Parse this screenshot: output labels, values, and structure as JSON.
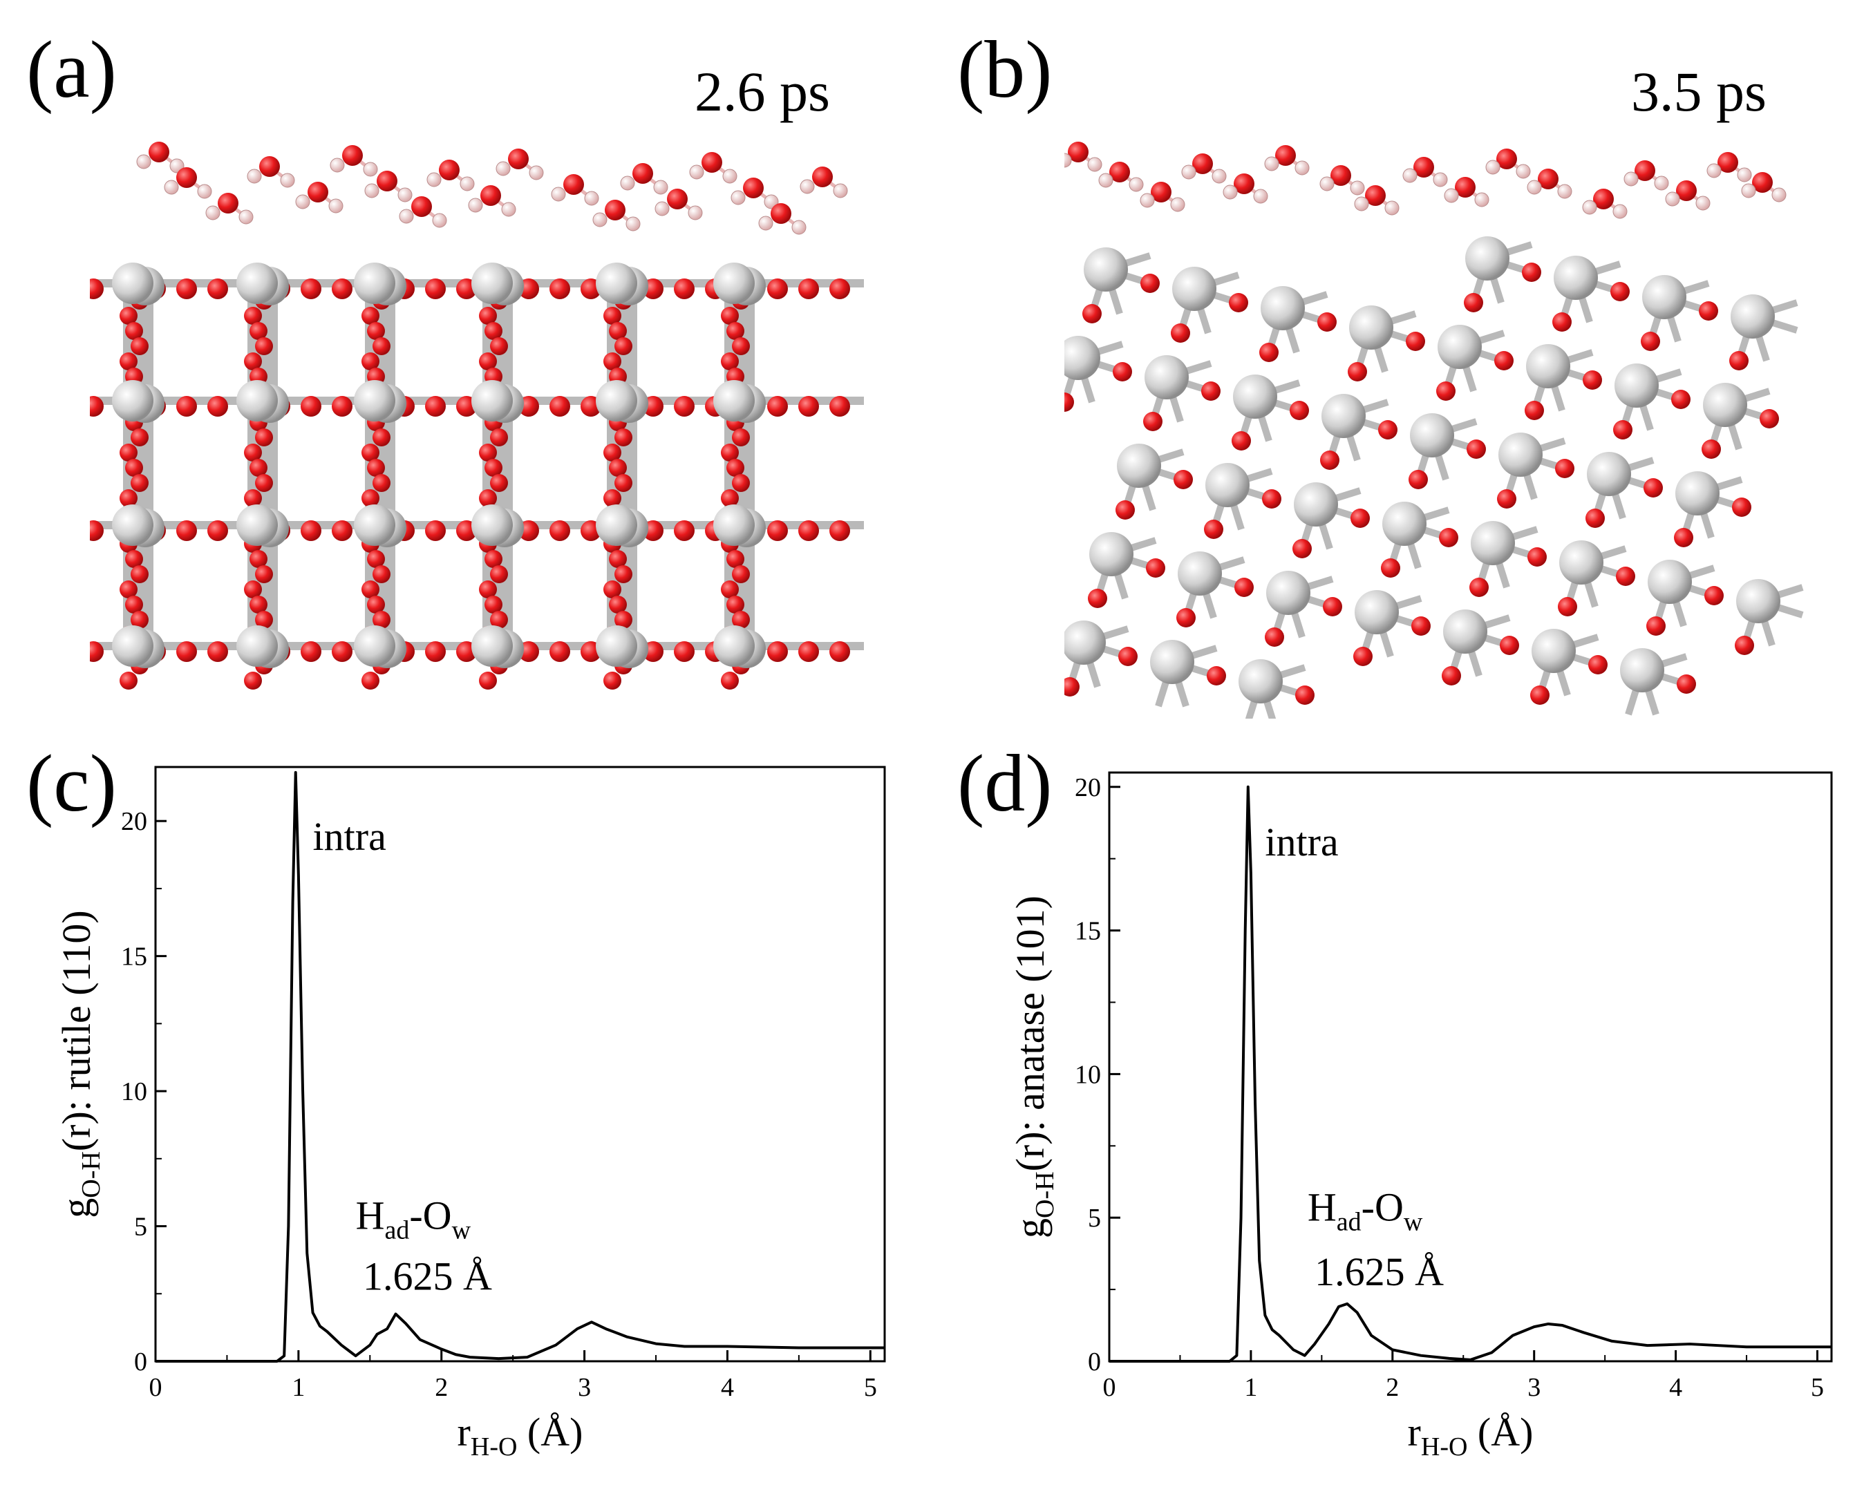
{
  "panels": {
    "a": {
      "letter": "(a)",
      "time": "2.6 ps"
    },
    "b": {
      "letter": "(b)",
      "time": "3.5 ps"
    },
    "c": {
      "letter": "(c)"
    },
    "d": {
      "letter": "(d)"
    }
  },
  "colors": {
    "oxygen": "#e8191c",
    "titanium": "#cfcfcf",
    "hydrogen": "#f2d4d4",
    "bond": "#b9b9b9"
  },
  "chart_data": [
    {
      "type": "line",
      "panel": "(c)",
      "ylabel_main": "g",
      "ylabel_sub": "O-H",
      "ylabel_rest": "(r):  rutile (110)",
      "xlabel_main": "r",
      "xlabel_sub": "H-O",
      "xlabel_rest": " (Å)",
      "xlim": [
        0,
        5.1
      ],
      "ylim": [
        0,
        22
      ],
      "xticks": [
        0,
        1,
        2,
        3,
        4,
        5
      ],
      "yticks": [
        0,
        5,
        10,
        15,
        20
      ],
      "annotations": {
        "peak1": "intra",
        "peak2_main": "H",
        "peak2_sub1": "ad",
        "peak2_mid": "-O",
        "peak2_sub2": "w",
        "peak2_value": "1.625 Å"
      },
      "series": [
        {
          "x": [
            0,
            0.85,
            0.9,
            0.93,
            0.96,
            0.98,
            1.0,
            1.03,
            1.06,
            1.1,
            1.15,
            1.2,
            1.3,
            1.4,
            1.5,
            1.55,
            1.62,
            1.68,
            1.75,
            1.85,
            2.0,
            2.1,
            2.2,
            2.4,
            2.6,
            2.8,
            2.95,
            3.05,
            3.15,
            3.3,
            3.5,
            3.7,
            4.0,
            4.5,
            5.1
          ],
          "y": [
            0,
            0,
            0.2,
            5,
            17,
            21.8,
            18,
            10,
            4,
            1.8,
            1.3,
            1.1,
            0.6,
            0.2,
            0.6,
            1.0,
            1.2,
            1.75,
            1.4,
            0.8,
            0.45,
            0.25,
            0.15,
            0.1,
            0.15,
            0.6,
            1.2,
            1.45,
            1.2,
            0.9,
            0.65,
            0.55,
            0.55,
            0.5,
            0.5
          ]
        }
      ]
    },
    {
      "type": "line",
      "panel": "(d)",
      "ylabel_main": "g",
      "ylabel_sub": "O-H",
      "ylabel_rest": "(r):  anatase (101)",
      "xlabel_main": "r",
      "xlabel_sub": "H-O",
      "xlabel_rest": " (Å)",
      "xlim": [
        0,
        5.1
      ],
      "ylim": [
        0,
        20.5
      ],
      "xticks": [
        0,
        1,
        2,
        3,
        4,
        5
      ],
      "yticks": [
        0,
        5,
        10,
        15,
        20
      ],
      "annotations": {
        "peak1": "intra",
        "peak2_main": "H",
        "peak2_sub1": "ad",
        "peak2_mid": "-O",
        "peak2_sub2": "w",
        "peak2_value": "1.625 Å"
      },
      "series": [
        {
          "x": [
            0,
            0.85,
            0.9,
            0.93,
            0.96,
            0.98,
            1.0,
            1.03,
            1.06,
            1.1,
            1.15,
            1.2,
            1.3,
            1.38,
            1.45,
            1.55,
            1.62,
            1.68,
            1.75,
            1.85,
            2.0,
            2.2,
            2.4,
            2.55,
            2.7,
            2.85,
            3.0,
            3.1,
            3.2,
            3.35,
            3.55,
            3.8,
            4.1,
            4.5,
            5.1
          ],
          "y": [
            0,
            0,
            0.2,
            5,
            15,
            20,
            17,
            9,
            3.5,
            1.6,
            1.1,
            0.9,
            0.4,
            0.2,
            0.6,
            1.3,
            1.9,
            2.0,
            1.7,
            0.9,
            0.4,
            0.2,
            0.1,
            0.05,
            0.3,
            0.9,
            1.2,
            1.3,
            1.25,
            1.0,
            0.7,
            0.55,
            0.6,
            0.5,
            0.5
          ]
        }
      ]
    }
  ]
}
